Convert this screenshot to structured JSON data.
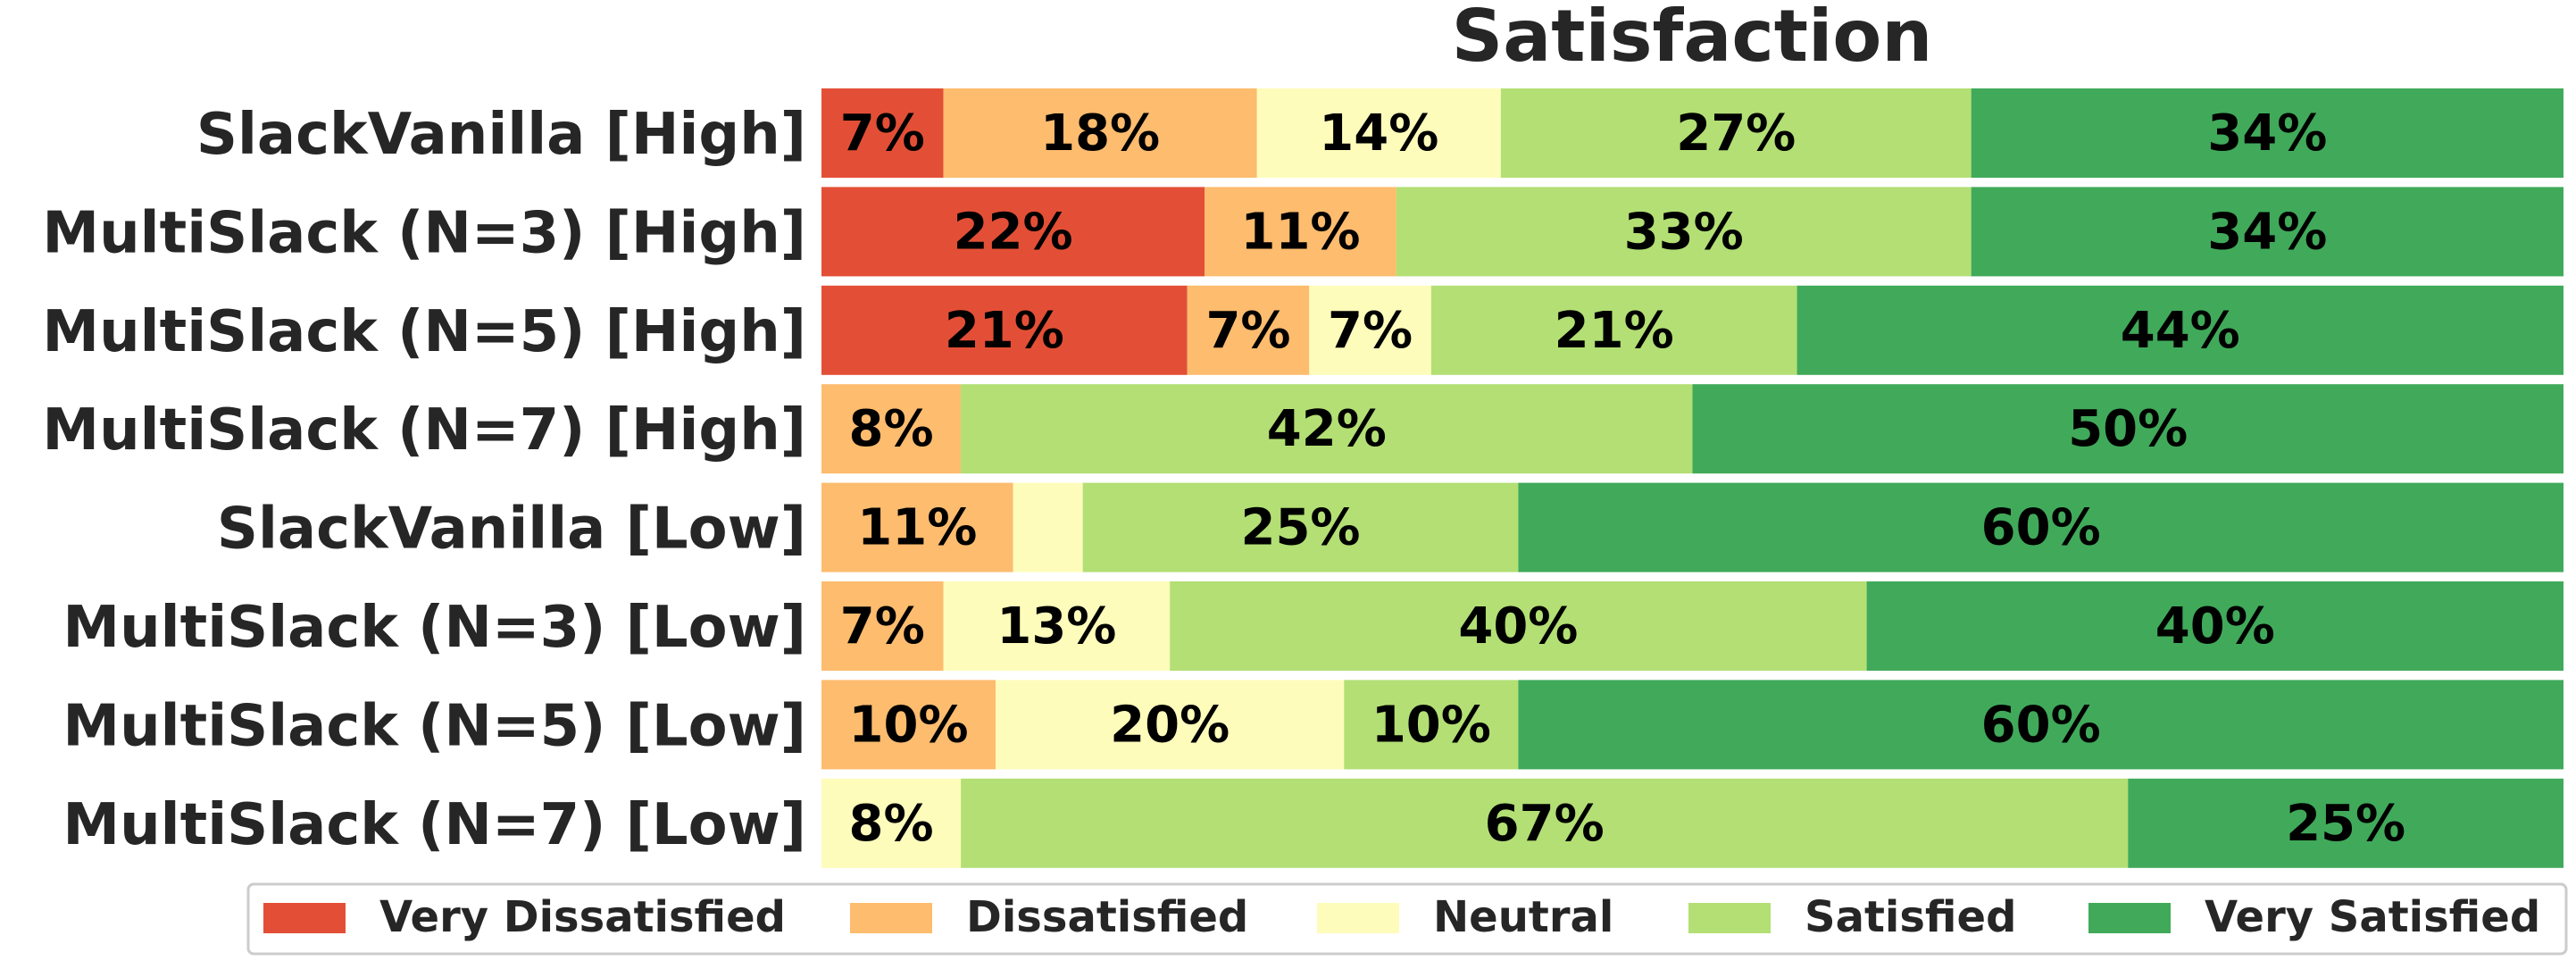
{
  "chart_data": {
    "type": "bar",
    "orientation": "horizontal-stacked-100",
    "title": "Satisfaction",
    "categories": [
      "SlackVanilla [High]",
      "MultiSlack (N=3) [High]",
      "MultiSlack (N=5) [High]",
      "MultiSlack (N=7) [High]",
      "SlackVanilla [Low]",
      "MultiSlack (N=3) [Low]",
      "MultiSlack (N=5) [Low]",
      "MultiSlack (N=7) [Low]"
    ],
    "series": [
      {
        "name": "Very Dissatisfied",
        "color": "#e34f36",
        "values": [
          7,
          22,
          21,
          0,
          0,
          0,
          0,
          0
        ]
      },
      {
        "name": "Dissatisfied",
        "color": "#fdbc6e",
        "values": [
          18,
          11,
          7,
          8,
          11,
          7,
          10,
          0
        ]
      },
      {
        "name": "Neutral",
        "color": "#fefcbb",
        "values": [
          14,
          0,
          7,
          0,
          4,
          13,
          20,
          8
        ]
      },
      {
        "name": "Satisfied",
        "color": "#b3df74",
        "values": [
          27,
          33,
          21,
          42,
          25,
          40,
          10,
          67
        ]
      },
      {
        "name": "Very Satisfied",
        "color": "#40aa5a",
        "values": [
          34,
          34,
          44,
          50,
          60,
          40,
          60,
          25
        ]
      }
    ],
    "label_min_value": 5,
    "value_suffix": "%",
    "xlim": [
      0,
      100
    ],
    "legend_position": "bottom",
    "grid": false
  }
}
